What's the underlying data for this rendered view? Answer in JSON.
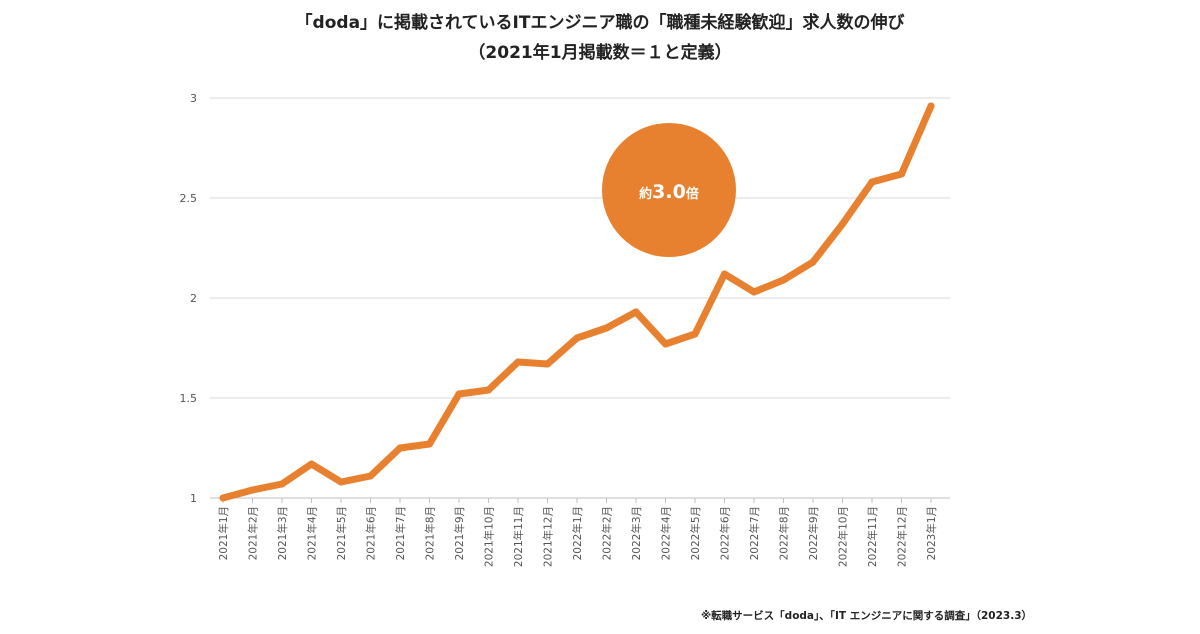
{
  "chart_data": {
    "type": "line",
    "title": "「doda」に掲載されているITエンジニア職の「職種未経験歓迎」求人数の伸び",
    "subtitle": "（2021年1月掲載数＝１と定義）",
    "xlabel": "",
    "ylabel": "",
    "ylim": [
      1,
      3
    ],
    "yticks": [
      "1",
      "1.5",
      "2",
      "2.5",
      "3"
    ],
    "ytick_values": [
      1,
      1.5,
      2,
      2.5,
      3
    ],
    "grid": true,
    "categories": [
      "2021年1月",
      "2021年2月",
      "2021年3月",
      "2021年4月",
      "2021年5月",
      "2021年6月",
      "2021年7月",
      "2021年8月",
      "2021年9月",
      "2021年10月",
      "2021年11月",
      "2021年12月",
      "2022年1月",
      "2022年2月",
      "2022年3月",
      "2022年4月",
      "2022年5月",
      "2022年6月",
      "2022年7月",
      "2022年8月",
      "2022年9月",
      "2022年10月",
      "2022年11月",
      "2022年12月",
      "2023年1月"
    ],
    "series": [
      {
        "values": [
          1.0,
          1.04,
          1.07,
          1.17,
          1.08,
          1.11,
          1.25,
          1.27,
          1.52,
          1.54,
          1.68,
          1.67,
          1.8,
          1.85,
          1.93,
          1.77,
          1.82,
          2.12,
          2.03,
          2.09,
          2.18,
          2.37,
          2.58,
          2.62,
          2.96
        ],
        "color": "#E8812F"
      }
    ],
    "annotation": {
      "prefix": "約",
      "value": "3.0",
      "suffix": "倍",
      "color": "#E8812F"
    }
  },
  "source_note": "※転職サービス「doda」、「IT エンジニアに関する調査」（2023.3）"
}
